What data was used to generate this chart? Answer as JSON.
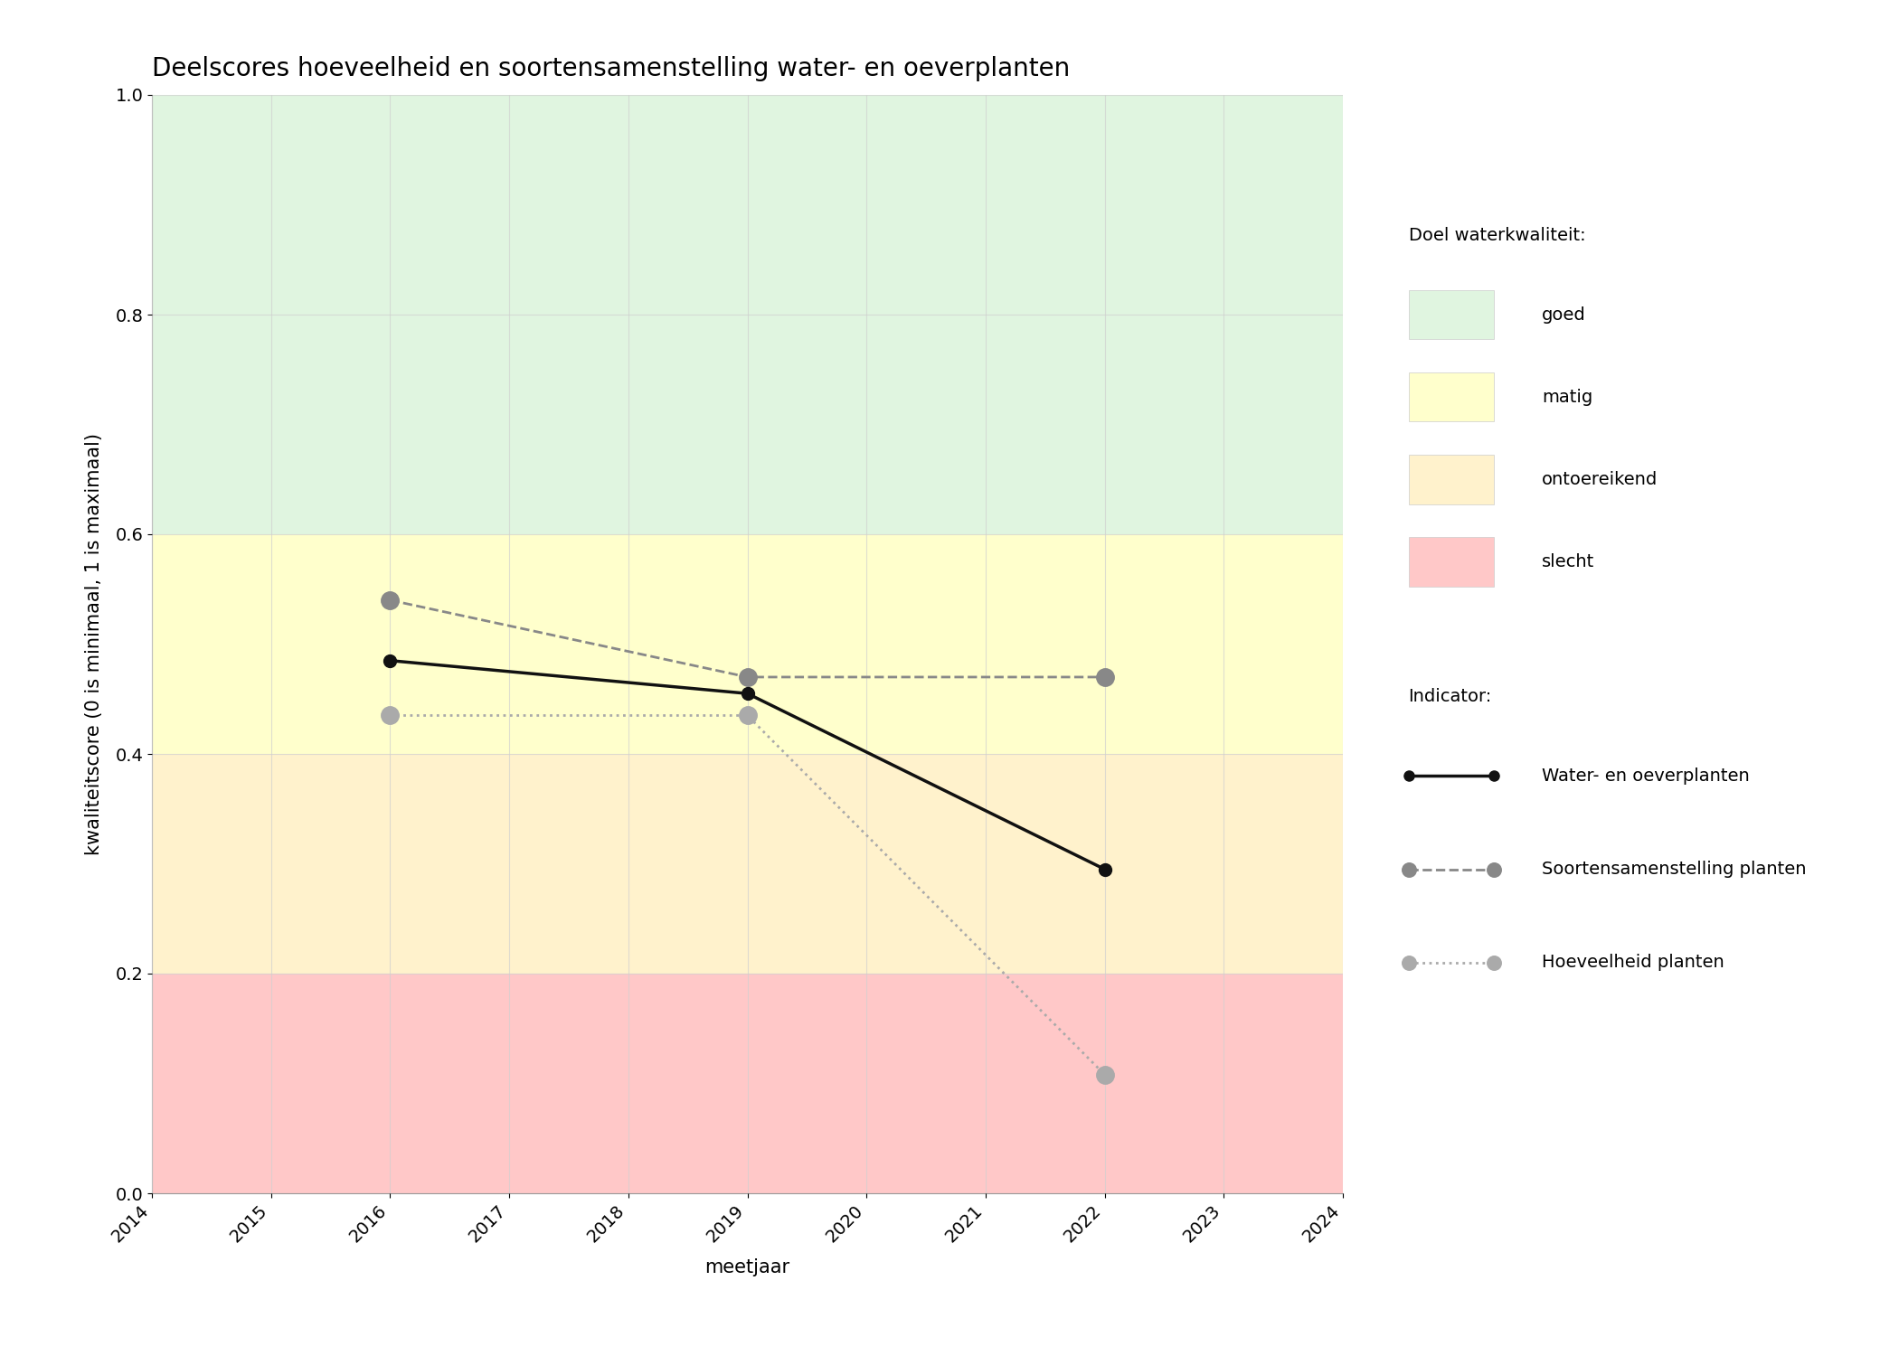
{
  "title": "Deelscores hoeveelheid en soortensamenstelling water- en oeverplanten",
  "xlabel": "meetjaar",
  "ylabel": "kwaliteitscore (0 is minimaal, 1 is maximaal)",
  "xlim": [
    2014,
    2024
  ],
  "ylim": [
    0.0,
    1.0
  ],
  "xticks": [
    2014,
    2015,
    2016,
    2017,
    2018,
    2019,
    2020,
    2021,
    2022,
    2023,
    2024
  ],
  "yticks": [
    0.0,
    0.2,
    0.4,
    0.6,
    0.8,
    1.0
  ],
  "background_color": "#ffffff",
  "bg_bands": [
    {
      "ymin": 0.0,
      "ymax": 0.2,
      "color": "#ffc8c8",
      "label": "slecht"
    },
    {
      "ymin": 0.2,
      "ymax": 0.4,
      "color": "#fff2cc",
      "label": "ontoereikend"
    },
    {
      "ymin": 0.4,
      "ymax": 0.6,
      "color": "#ffffcc",
      "label": "matig"
    },
    {
      "ymin": 0.6,
      "ymax": 1.0,
      "color": "#e0f5e0",
      "label": "goed"
    }
  ],
  "series": [
    {
      "name": "Water- en oeverplanten",
      "x": [
        2016,
        2019,
        2022
      ],
      "y": [
        0.485,
        0.455,
        0.295
      ],
      "color": "#111111",
      "linestyle": "solid",
      "linewidth": 2.5,
      "marker": "o",
      "markersize": 10,
      "zorder": 5
    },
    {
      "name": "Soortensamenstelling planten",
      "x": [
        2016,
        2019,
        2022
      ],
      "y": [
        0.54,
        0.47,
        0.47
      ],
      "color": "#888888",
      "linestyle": "dashed",
      "linewidth": 2.0,
      "marker": "o",
      "markersize": 14,
      "zorder": 4
    },
    {
      "name": "Hoeveelheid planten",
      "x": [
        2016,
        2019,
        2022
      ],
      "y": [
        0.435,
        0.435,
        0.108
      ],
      "color": "#aaaaaa",
      "linestyle": "dotted",
      "linewidth": 2.0,
      "marker": "o",
      "markersize": 14,
      "zorder": 3
    }
  ],
  "legend_title_quality": "Doel waterkwaliteit:",
  "legend_title_indicator": "Indicator:",
  "grid_color": "#d0d0d0",
  "grid_alpha": 0.7,
  "title_fontsize": 20,
  "label_fontsize": 15,
  "tick_fontsize": 14,
  "legend_fontsize": 14
}
